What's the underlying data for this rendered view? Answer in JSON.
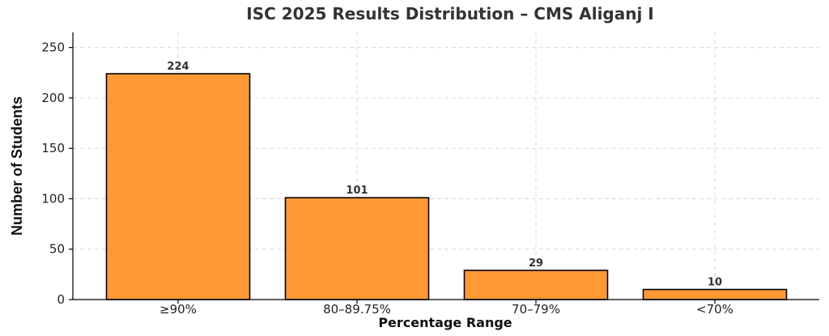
{
  "chart_data": {
    "type": "bar",
    "title": "ISC 2025 Results Distribution – CMS Aliganj I",
    "xlabel": "Percentage Range",
    "ylabel": "Number of Students",
    "categories": [
      "≥90%",
      "80–89.75%",
      "70–79%",
      "<70%"
    ],
    "values": [
      224,
      101,
      29,
      10
    ],
    "ylim": [
      0,
      265
    ],
    "yticks": [
      0,
      50,
      100,
      150,
      200,
      250
    ],
    "grid": true,
    "bar_color": "#FF9933"
  }
}
